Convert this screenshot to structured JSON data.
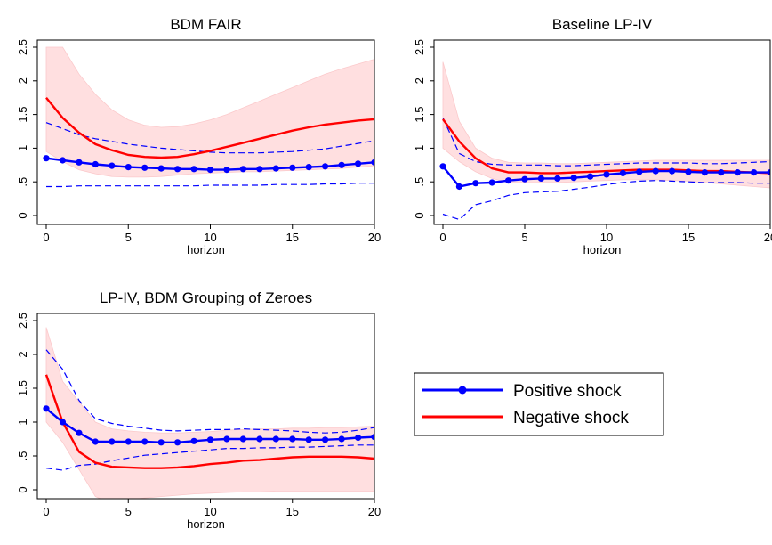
{
  "chart_data": [
    {
      "type": "line",
      "title": "BDM FAIR",
      "xlabel": "horizon",
      "ylabel": "",
      "xlim": [
        0,
        20
      ],
      "ylim": [
        0,
        2.5
      ],
      "xticks": [
        "0",
        "5",
        "10",
        "15",
        "20"
      ],
      "yticks": [
        "0",
        ".5",
        "1",
        "1.5",
        "2",
        "2.5"
      ],
      "x": [
        0,
        1,
        2,
        3,
        4,
        5,
        6,
        7,
        8,
        9,
        10,
        11,
        12,
        13,
        14,
        15,
        16,
        17,
        18,
        19,
        20
      ],
      "series": [
        {
          "name": "Positive shock",
          "color": "#0000ff",
          "style": "solid-markers",
          "values": [
            0.85,
            0.82,
            0.79,
            0.76,
            0.74,
            0.72,
            0.71,
            0.7,
            0.69,
            0.69,
            0.68,
            0.68,
            0.69,
            0.69,
            0.7,
            0.71,
            0.72,
            0.73,
            0.75,
            0.77,
            0.79
          ]
        },
        {
          "name": "Negative shock",
          "color": "#ff0000",
          "style": "solid",
          "values": [
            1.75,
            1.45,
            1.23,
            1.06,
            0.97,
            0.9,
            0.87,
            0.86,
            0.87,
            0.91,
            0.96,
            1.02,
            1.08,
            1.14,
            1.2,
            1.26,
            1.31,
            1.35,
            1.38,
            1.41,
            1.43
          ]
        },
        {
          "name": "",
          "role": "positive-band-upper",
          "color": "#0000ff",
          "style": "dashed",
          "values": [
            1.38,
            1.29,
            1.2,
            1.14,
            1.1,
            1.06,
            1.03,
            1.0,
            0.98,
            0.96,
            0.94,
            0.93,
            0.93,
            0.93,
            0.94,
            0.95,
            0.97,
            0.99,
            1.03,
            1.07,
            1.11
          ]
        },
        {
          "name": "",
          "role": "positive-band-lower",
          "color": "#0000ff",
          "style": "dashed",
          "values": [
            0.43,
            0.43,
            0.44,
            0.44,
            0.44,
            0.44,
            0.44,
            0.44,
            0.44,
            0.44,
            0.45,
            0.45,
            0.45,
            0.45,
            0.46,
            0.46,
            0.46,
            0.47,
            0.47,
            0.48,
            0.48
          ]
        },
        {
          "name": "",
          "role": "negative-band-upper",
          "color": "#ffdfe0",
          "style": "fill",
          "values": [
            2.5,
            2.5,
            2.1,
            1.8,
            1.57,
            1.42,
            1.34,
            1.31,
            1.32,
            1.36,
            1.42,
            1.5,
            1.6,
            1.7,
            1.8,
            1.9,
            2.0,
            2.1,
            2.18,
            2.25,
            2.32
          ]
        },
        {
          "name": "",
          "role": "negative-band-lower",
          "color": "#ffdfe0",
          "style": "fill",
          "values": [
            0.95,
            0.8,
            0.68,
            0.62,
            0.58,
            0.57,
            0.57,
            0.58,
            0.6,
            0.62,
            0.63,
            0.64,
            0.65,
            0.65,
            0.66,
            0.67,
            0.68,
            0.69,
            0.7,
            0.72,
            0.74
          ]
        }
      ]
    },
    {
      "type": "line",
      "title": "Baseline LP-IV",
      "xlabel": "horizon",
      "ylabel": "",
      "xlim": [
        0,
        20
      ],
      "ylim": [
        0,
        2.5
      ],
      "xticks": [
        "0",
        "5",
        "10",
        "15",
        "20"
      ],
      "yticks": [
        "0",
        ".5",
        "1",
        "1.5",
        "2",
        "2.5"
      ],
      "x": [
        0,
        1,
        2,
        3,
        4,
        5,
        6,
        7,
        8,
        9,
        10,
        11,
        12,
        13,
        14,
        15,
        16,
        17,
        18,
        19,
        20
      ],
      "series": [
        {
          "name": "Positive shock",
          "color": "#0000ff",
          "style": "solid-markers",
          "values": [
            0.73,
            0.43,
            0.48,
            0.49,
            0.52,
            0.54,
            0.55,
            0.55,
            0.56,
            0.58,
            0.61,
            0.63,
            0.65,
            0.66,
            0.66,
            0.65,
            0.64,
            0.64,
            0.64,
            0.64,
            0.64
          ]
        },
        {
          "name": "Negative shock",
          "color": "#ff0000",
          "style": "solid",
          "values": [
            1.43,
            1.1,
            0.85,
            0.7,
            0.64,
            0.64,
            0.63,
            0.63,
            0.64,
            0.65,
            0.66,
            0.67,
            0.68,
            0.68,
            0.68,
            0.67,
            0.66,
            0.66,
            0.65,
            0.64,
            0.63
          ]
        },
        {
          "name": "",
          "role": "positive-band-upper",
          "color": "#0000ff",
          "style": "dashed",
          "values": [
            1.45,
            0.92,
            0.8,
            0.76,
            0.75,
            0.75,
            0.75,
            0.74,
            0.74,
            0.75,
            0.76,
            0.77,
            0.78,
            0.78,
            0.78,
            0.78,
            0.77,
            0.77,
            0.78,
            0.79,
            0.8
          ]
        },
        {
          "name": "",
          "role": "positive-band-lower",
          "color": "#0000ff",
          "style": "dashed",
          "values": [
            0.02,
            -0.06,
            0.16,
            0.22,
            0.3,
            0.34,
            0.35,
            0.36,
            0.39,
            0.42,
            0.46,
            0.49,
            0.51,
            0.52,
            0.51,
            0.5,
            0.49,
            0.49,
            0.49,
            0.48,
            0.48
          ]
        },
        {
          "name": "",
          "role": "negative-band-upper",
          "color": "#ffdfe0",
          "style": "fill",
          "values": [
            2.28,
            1.4,
            1.0,
            0.85,
            0.79,
            0.78,
            0.78,
            0.77,
            0.77,
            0.78,
            0.79,
            0.8,
            0.81,
            0.82,
            0.82,
            0.82,
            0.82,
            0.82,
            0.82,
            0.82,
            0.82
          ]
        },
        {
          "name": "",
          "role": "negative-band-lower",
          "color": "#ffdfe0",
          "style": "fill",
          "values": [
            1.0,
            0.8,
            0.65,
            0.55,
            0.49,
            0.49,
            0.49,
            0.49,
            0.5,
            0.51,
            0.52,
            0.53,
            0.53,
            0.53,
            0.52,
            0.51,
            0.49,
            0.47,
            0.45,
            0.43,
            0.41
          ]
        }
      ]
    },
    {
      "type": "line",
      "title": "LP-IV, BDM Grouping of Zeroes",
      "xlabel": "horizon",
      "ylabel": "",
      "xlim": [
        0,
        20
      ],
      "ylim": [
        0,
        2.5
      ],
      "xticks": [
        "0",
        "5",
        "10",
        "15",
        "20"
      ],
      "yticks": [
        "0",
        ".5",
        "1",
        "1.5",
        "2",
        "2.5"
      ],
      "x": [
        0,
        1,
        2,
        3,
        4,
        5,
        6,
        7,
        8,
        9,
        10,
        11,
        12,
        13,
        14,
        15,
        16,
        17,
        18,
        19,
        20
      ],
      "series": [
        {
          "name": "Positive shock",
          "color": "#0000ff",
          "style": "solid-markers",
          "values": [
            1.2,
            1.0,
            0.84,
            0.71,
            0.71,
            0.71,
            0.71,
            0.7,
            0.7,
            0.72,
            0.74,
            0.75,
            0.75,
            0.75,
            0.75,
            0.75,
            0.74,
            0.74,
            0.75,
            0.77,
            0.78
          ]
        },
        {
          "name": "Negative shock",
          "color": "#ff0000",
          "style": "solid",
          "values": [
            1.7,
            1.0,
            0.56,
            0.4,
            0.34,
            0.33,
            0.32,
            0.32,
            0.33,
            0.35,
            0.38,
            0.4,
            0.43,
            0.44,
            0.46,
            0.48,
            0.49,
            0.49,
            0.49,
            0.48,
            0.46
          ]
        },
        {
          "name": "",
          "role": "positive-band-upper",
          "color": "#0000ff",
          "style": "dashed",
          "values": [
            2.07,
            1.78,
            1.32,
            1.05,
            0.98,
            0.94,
            0.91,
            0.88,
            0.87,
            0.88,
            0.89,
            0.89,
            0.9,
            0.89,
            0.88,
            0.87,
            0.85,
            0.84,
            0.85,
            0.88,
            0.92
          ]
        },
        {
          "name": "",
          "role": "positive-band-lower",
          "color": "#0000ff",
          "style": "dashed",
          "values": [
            0.32,
            0.29,
            0.36,
            0.38,
            0.43,
            0.47,
            0.51,
            0.53,
            0.55,
            0.57,
            0.59,
            0.61,
            0.61,
            0.62,
            0.62,
            0.63,
            0.63,
            0.64,
            0.65,
            0.66,
            0.66
          ]
        },
        {
          "name": "",
          "role": "negative-band-upper",
          "color": "#ffdfe0",
          "style": "fill",
          "values": [
            2.4,
            1.6,
            1.3,
            1.0,
            0.9,
            0.87,
            0.85,
            0.84,
            0.84,
            0.85,
            0.86,
            0.88,
            0.89,
            0.9,
            0.9,
            0.91,
            0.91,
            0.92,
            0.92,
            0.93,
            0.94
          ]
        },
        {
          "name": "",
          "role": "negative-band-lower",
          "color": "#ffdfe0",
          "style": "fill",
          "values": [
            1.0,
            0.7,
            0.3,
            -0.1,
            -0.2,
            -0.15,
            -0.12,
            -0.1,
            -0.08,
            -0.06,
            -0.05,
            -0.04,
            -0.03,
            -0.03,
            -0.02,
            -0.02,
            -0.02,
            -0.02,
            -0.02,
            -0.02,
            -0.02
          ]
        }
      ]
    }
  ],
  "legend": {
    "placement": "bottom-right",
    "items": [
      {
        "label": "Positive shock",
        "color": "#0000ff",
        "marker": true
      },
      {
        "label": "Negative shock",
        "color": "#ff0000",
        "marker": false
      }
    ]
  }
}
